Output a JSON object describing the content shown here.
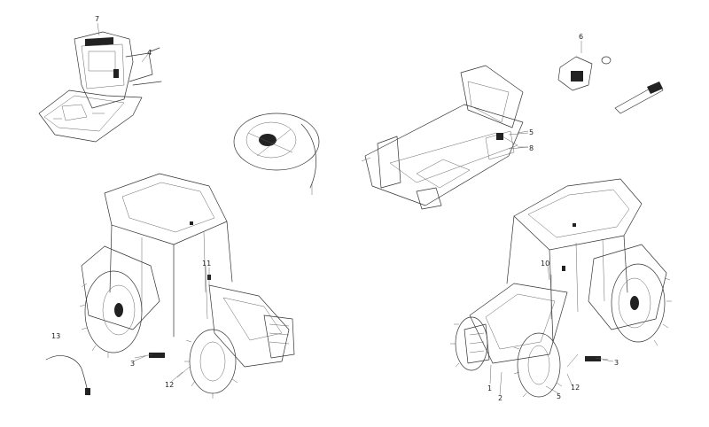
{
  "callouts": [
    {
      "id": "c7",
      "text": "7"
    },
    {
      "id": "c4",
      "text": "4"
    },
    {
      "id": "c6",
      "text": "6"
    },
    {
      "id": "c5a",
      "text": "5"
    },
    {
      "id": "c8",
      "text": "8"
    },
    {
      "id": "c11",
      "text": "11"
    },
    {
      "id": "c10",
      "text": "10"
    },
    {
      "id": "c13",
      "text": "13"
    },
    {
      "id": "c3a",
      "text": "3"
    },
    {
      "id": "c12a",
      "text": "12"
    },
    {
      "id": "c3b",
      "text": "3"
    },
    {
      "id": "c12b",
      "text": "12"
    },
    {
      "id": "c1",
      "text": "1"
    },
    {
      "id": "c2",
      "text": "2"
    },
    {
      "id": "c5b",
      "text": "5"
    }
  ]
}
